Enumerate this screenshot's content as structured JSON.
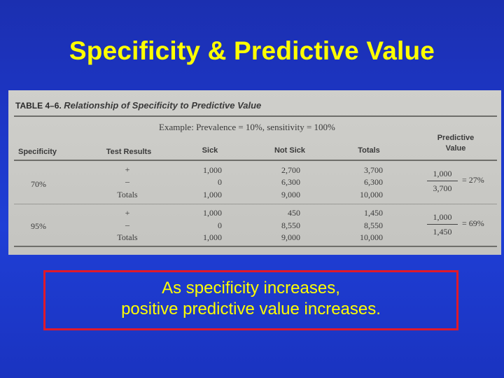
{
  "slide": {
    "title": "Specificity & Predictive Value",
    "callout_line1": "As specificity increases,",
    "callout_line2": "positive predictive value increases."
  },
  "table": {
    "label": "TABLE 4–6.",
    "caption": "Relationship of Specificity to Predictive Value",
    "example": "Example: Prevalence = 10%, sensitivity = 100%",
    "headers": {
      "specificity": "Specificity",
      "test_results": "Test Results",
      "sick": "Sick",
      "not_sick": "Not Sick",
      "totals": "Totals",
      "pv_line1": "Predictive",
      "pv_line2": "Value"
    },
    "blocks": [
      {
        "specificity": "70%",
        "rows": [
          {
            "result": "+",
            "sick": "1,000",
            "not_sick": "2,700",
            "total": "3,700"
          },
          {
            "result": "–",
            "sick": "0",
            "not_sick": "6,300",
            "total": "6,300"
          },
          {
            "result": "Totals",
            "sick": "1,000",
            "not_sick": "9,000",
            "total": "10,000"
          }
        ],
        "pv_numerator": "1,000",
        "pv_denominator": "3,700",
        "pv_result": "= 27%"
      },
      {
        "specificity": "95%",
        "rows": [
          {
            "result": "+",
            "sick": "1,000",
            "not_sick": "450",
            "total": "1,450"
          },
          {
            "result": "–",
            "sick": "0",
            "not_sick": "8,550",
            "total": "8,550"
          },
          {
            "result": "Totals",
            "sick": "1,000",
            "not_sick": "9,000",
            "total": "10,000"
          }
        ],
        "pv_numerator": "1,000",
        "pv_denominator": "1,450",
        "pv_result": "= 69%"
      }
    ]
  },
  "colors": {
    "background": "#1f3fd6",
    "title": "#ffff00",
    "callout_border": "#e0192b"
  }
}
